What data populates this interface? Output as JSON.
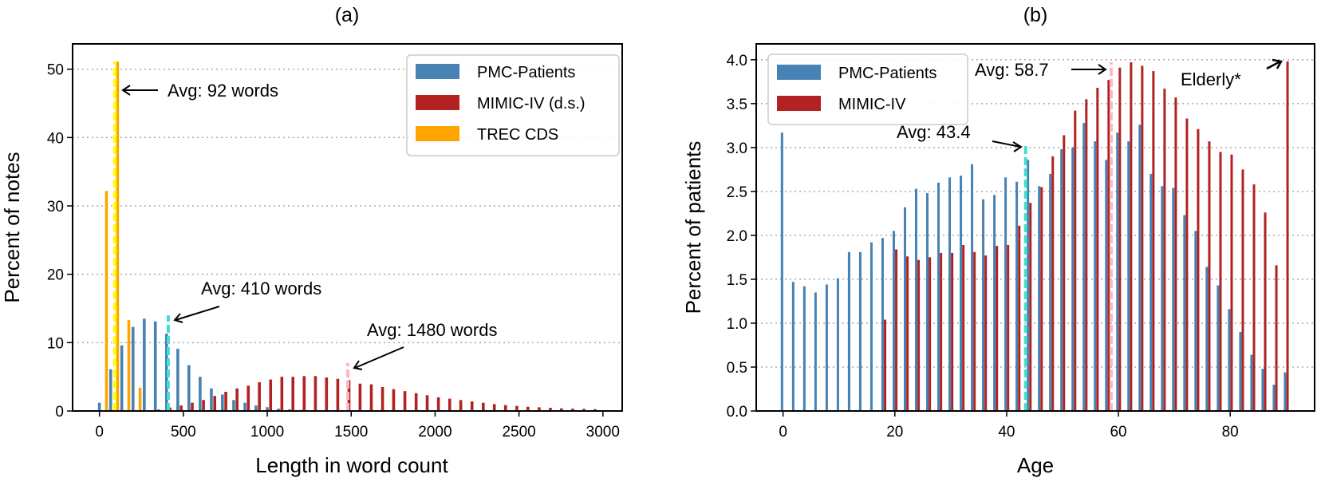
{
  "colors": {
    "pmc": "#4682b4",
    "mimic": "#b22222",
    "trec": "#ffa500",
    "avg_trec": "#ffff00",
    "avg_pmc": "#40e0d0",
    "avg_mimic": "#ffb6c1"
  },
  "chart_data": [
    {
      "type": "bar",
      "title": "(a)",
      "xlabel": "Length in word count",
      "ylabel": "Percent of notes",
      "xlim": [
        -160,
        3115
      ],
      "ylim": [
        0,
        53.7
      ],
      "xticks": [
        0,
        500,
        1000,
        1500,
        2000,
        2500,
        3000
      ],
      "yticks": [
        0,
        10,
        20,
        30,
        40,
        50
      ],
      "grid": "horizontal-dotted",
      "legend_position": "top-right",
      "series": [
        {
          "name": "PMC-Patients",
          "color_key": "pmc",
          "x": [
            0,
            67,
            133,
            200,
            267,
            333,
            400,
            467,
            533,
            600,
            667,
            733,
            800,
            867,
            933,
            1000,
            1067,
            1133,
            1200,
            1267
          ],
          "values": [
            1.2,
            6.1,
            9.6,
            12.3,
            13.5,
            13.1,
            11.3,
            9.1,
            6.7,
            5.0,
            3.3,
            2.4,
            1.6,
            1.2,
            0.8,
            0.55,
            0.35,
            0.25,
            0.15,
            0.1
          ]
        },
        {
          "name": "MIMIC-IV (d.s.)",
          "color_key": "mimic",
          "x": [
            353,
            420,
            487,
            553,
            620,
            687,
            753,
            820,
            887,
            953,
            1020,
            1087,
            1153,
            1220,
            1287,
            1353,
            1420,
            1487,
            1553,
            1620,
            1687,
            1753,
            1820,
            1887,
            1953,
            2020,
            2087,
            2153,
            2220,
            2287,
            2353,
            2420,
            2487,
            2553,
            2620,
            2687,
            2753,
            2820,
            2887,
            2953
          ],
          "values": [
            0.2,
            0.5,
            0.8,
            1.2,
            1.6,
            2.2,
            2.8,
            3.3,
            3.7,
            4.2,
            4.6,
            5.0,
            5.0,
            5.1,
            5.1,
            4.9,
            4.7,
            4.5,
            4.0,
            3.9,
            3.5,
            3.2,
            2.9,
            2.6,
            2.3,
            2.0,
            1.8,
            1.6,
            1.4,
            1.2,
            1.0,
            0.86,
            0.74,
            0.62,
            0.54,
            0.47,
            0.39,
            0.35,
            0.31,
            0.27
          ]
        },
        {
          "name": "TREC CDS",
          "color_key": "trec",
          "x": [
            42,
            108,
            175,
            242
          ],
          "values": [
            32.2,
            51.1,
            13.3,
            3.4
          ]
        }
      ],
      "avg_lines": [
        {
          "x": 92,
          "color_key": "avg_trec",
          "top": 51.1,
          "label": "Avg: 92 words"
        },
        {
          "x": 410,
          "color_key": "avg_pmc",
          "top": 14.0,
          "label": "Avg: 410 words"
        },
        {
          "x": 1480,
          "color_key": "avg_mimic",
          "top": 7.0,
          "label": "Avg: 1480 words"
        }
      ]
    },
    {
      "type": "bar",
      "title": "(b)",
      "xlabel": "Age",
      "ylabel": "Percent of patients",
      "xlim": [
        -4.8,
        95.1
      ],
      "ylim": [
        0,
        4.18
      ],
      "xticks": [
        0,
        20,
        40,
        60,
        80
      ],
      "yticks": [
        "0.0",
        "0.5",
        "1.0",
        "1.5",
        "2.0",
        "2.5",
        "3.0",
        "3.5",
        "4.0"
      ],
      "grid": "horizontal-dotted",
      "legend_position": "top-left",
      "series": [
        {
          "name": "PMC-Patients",
          "color_key": "pmc",
          "x": [
            0,
            2,
            4,
            6,
            8,
            10,
            12,
            14,
            16,
            18,
            20,
            22,
            24,
            26,
            28,
            30,
            32,
            34,
            36,
            38,
            40,
            42,
            44,
            46,
            48,
            50,
            52,
            54,
            56,
            58,
            60,
            62,
            64,
            66,
            68,
            70,
            72,
            74,
            76,
            78,
            80,
            82,
            84,
            86,
            88,
            90
          ],
          "values": [
            3.17,
            1.47,
            1.42,
            1.35,
            1.44,
            1.51,
            1.81,
            1.81,
            1.92,
            1.97,
            2.05,
            2.32,
            2.53,
            2.48,
            2.6,
            2.66,
            2.68,
            2.81,
            2.41,
            2.46,
            2.66,
            2.61,
            2.86,
            2.56,
            2.7,
            2.98,
            3.0,
            3.28,
            3.07,
            2.86,
            3.17,
            3.07,
            3.26,
            2.7,
            2.56,
            2.54,
            2.23,
            2.05,
            1.64,
            1.43,
            1.16,
            0.9,
            0.64,
            0.48,
            0.3,
            0.44
          ]
        },
        {
          "name": "MIMIC-IV",
          "color_key": "mimic",
          "x": [
            18,
            20,
            22,
            24,
            26,
            28,
            30,
            32,
            34,
            36,
            38,
            40,
            42,
            44,
            46,
            48,
            50,
            52,
            54,
            56,
            58,
            60,
            62,
            64,
            66,
            68,
            70,
            72,
            74,
            76,
            78,
            80,
            82,
            84,
            86,
            88,
            90
          ],
          "values": [
            1.04,
            1.84,
            1.76,
            1.72,
            1.75,
            1.8,
            1.8,
            1.89,
            1.81,
            1.77,
            1.88,
            1.89,
            2.11,
            2.37,
            2.55,
            2.9,
            3.14,
            3.42,
            3.55,
            3.68,
            3.77,
            3.91,
            3.97,
            3.93,
            3.87,
            3.67,
            3.57,
            3.33,
            3.21,
            3.07,
            2.95,
            2.92,
            2.75,
            2.58,
            2.26,
            1.66,
            3.98
          ]
        }
      ],
      "avg_lines": [
        {
          "x": 43.4,
          "color_key": "avg_pmc",
          "top": 3.05,
          "label": "Avg: 43.4"
        },
        {
          "x": 58.7,
          "color_key": "avg_mimic",
          "top": 3.97,
          "label": "Avg: 58.7"
        }
      ],
      "annotations": [
        {
          "label": "Elderly*"
        }
      ]
    }
  ]
}
